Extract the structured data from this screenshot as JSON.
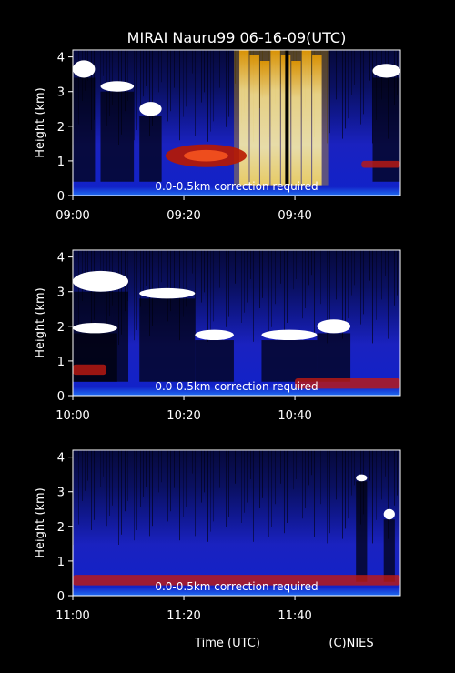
{
  "chart_data": {
    "type": "heatmap",
    "title": "MIRAI Nauru99 06-16-09(UTC)",
    "xlabel": "Time (UTC)",
    "credit": "(C)NIES",
    "ylabel": "Height (km)",
    "ylim": [
      0,
      4.2
    ],
    "yticks": [
      "0",
      "1",
      "2",
      "3",
      "4"
    ],
    "colors": {
      "background": "#000000",
      "low": "#1a22d8",
      "mid": "#c81a00",
      "high": "#fff6d0"
    },
    "panels": [
      {
        "xlim_min": [
          0,
          59
        ],
        "xticks": [
          {
            "label": "09:00",
            "min": 0
          },
          {
            "label": "09:20",
            "min": 20
          },
          {
            "label": "09:40",
            "min": 40
          }
        ],
        "annotation": "0.0-0.5km correction required",
        "features": [
          {
            "kind": "cloud",
            "t": [
              0,
              4
            ],
            "h": [
              3.4,
              3.9
            ]
          },
          {
            "kind": "cloud",
            "t": [
              5,
              11
            ],
            "h": [
              3.0,
              3.3
            ]
          },
          {
            "kind": "cloud",
            "t": [
              12,
              16
            ],
            "h": [
              2.3,
              2.7
            ]
          },
          {
            "kind": "convective_core",
            "t": [
              30,
              45
            ],
            "h": [
              0.3,
              4.2
            ]
          },
          {
            "kind": "boundary_layer_scatter",
            "t": [
              18,
              30
            ],
            "h": [
              0.9,
              1.4
            ]
          },
          {
            "kind": "cloud",
            "t": [
              54,
              59
            ],
            "h": [
              3.4,
              3.8
            ]
          },
          {
            "kind": "scatter_layer",
            "t": [
              52,
              59
            ],
            "h": [
              0.8,
              1.0
            ]
          }
        ]
      },
      {
        "xlim_min": [
          0,
          59
        ],
        "xticks": [
          {
            "label": "10:00",
            "min": 0
          },
          {
            "label": "10:20",
            "min": 20
          },
          {
            "label": "10:40",
            "min": 40
          }
        ],
        "annotation": "0.0-0.5km correction required",
        "features": [
          {
            "kind": "cloud",
            "t": [
              0,
              10
            ],
            "h": [
              3.0,
              3.6
            ]
          },
          {
            "kind": "cloud",
            "t": [
              12,
              22
            ],
            "h": [
              2.8,
              3.1
            ]
          },
          {
            "kind": "cloud",
            "t": [
              0,
              8
            ],
            "h": [
              1.8,
              2.1
            ]
          },
          {
            "kind": "cloud",
            "t": [
              22,
              29
            ],
            "h": [
              1.6,
              1.9
            ]
          },
          {
            "kind": "cloud",
            "t": [
              34,
              44
            ],
            "h": [
              1.6,
              1.9
            ]
          },
          {
            "kind": "cloud",
            "t": [
              44,
              50
            ],
            "h": [
              1.8,
              2.2
            ]
          },
          {
            "kind": "scatter_layer",
            "t": [
              0,
              6
            ],
            "h": [
              0.6,
              0.9
            ]
          },
          {
            "kind": "scatter_layer",
            "t": [
              40,
              59
            ],
            "h": [
              0.2,
              0.5
            ]
          }
        ]
      },
      {
        "xlim_min": [
          0,
          59
        ],
        "xticks": [
          {
            "label": "11:00",
            "min": 0
          },
          {
            "label": "11:20",
            "min": 20
          },
          {
            "label": "11:40",
            "min": 40
          }
        ],
        "annotation": "0.0-0.5km correction required",
        "features": [
          {
            "kind": "cloud",
            "t": [
              51,
              53
            ],
            "h": [
              3.3,
              3.5
            ]
          },
          {
            "kind": "cloud",
            "t": [
              56,
              58
            ],
            "h": [
              2.2,
              2.5
            ]
          },
          {
            "kind": "scatter_layer",
            "t": [
              0,
              59
            ],
            "h": [
              0.3,
              0.6
            ]
          }
        ]
      }
    ]
  }
}
